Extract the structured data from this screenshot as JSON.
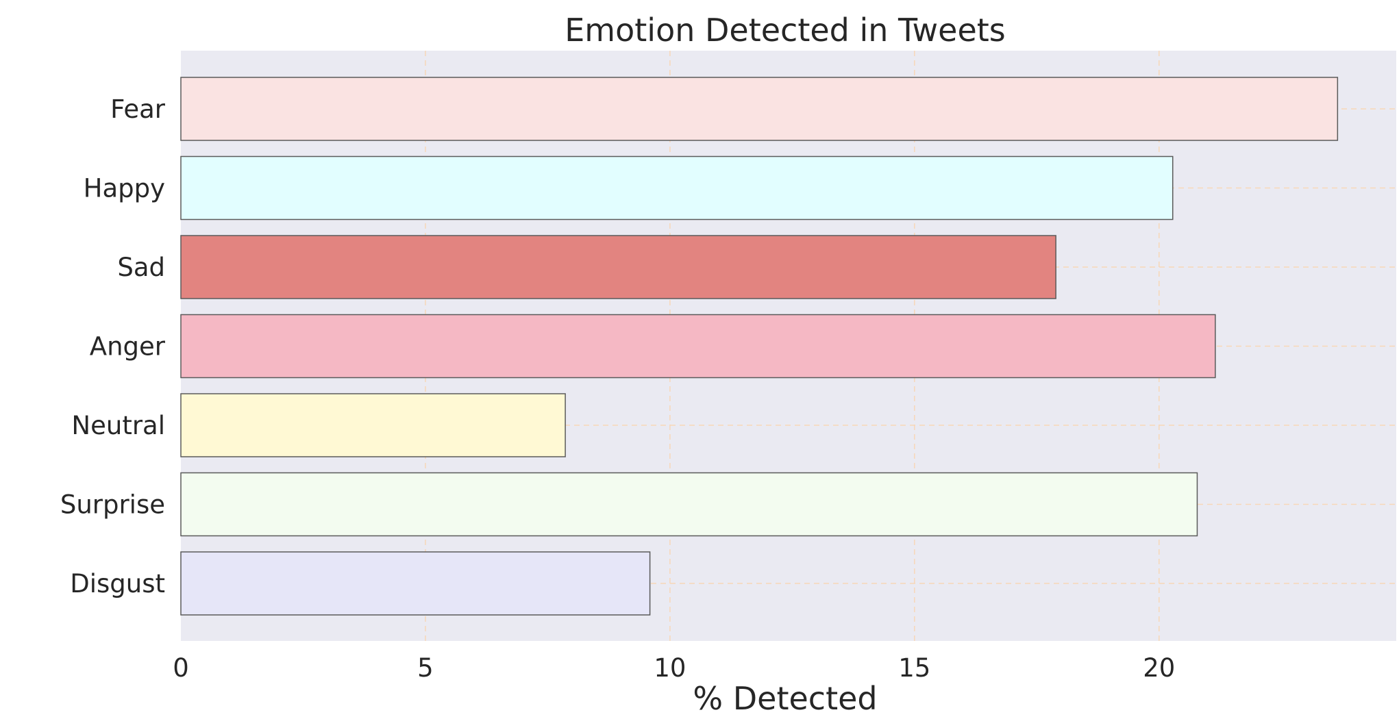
{
  "chart_data": {
    "type": "bar",
    "orientation": "horizontal",
    "title": "Emotion Detected in Tweets",
    "xlabel": "% Detected",
    "ylabel": "",
    "categories": [
      "Fear",
      "Happy",
      "Sad",
      "Anger",
      "Neutral",
      "Surprise",
      "Disgust"
    ],
    "values": [
      23.65,
      20.28,
      17.89,
      21.15,
      7.86,
      20.78,
      9.59
    ],
    "colors": [
      "#fae3e2",
      "#e2feff",
      "#e28480",
      "#f5b8c4",
      "#fff9d4",
      "#f3fcf0",
      "#e6e6f8"
    ],
    "xticks": [
      0,
      5,
      10,
      15,
      20
    ],
    "xlim": [
      0,
      24.85
    ],
    "grid": true,
    "plot_background": "#eaeaf2",
    "grid_color": "#f7d7b8"
  }
}
